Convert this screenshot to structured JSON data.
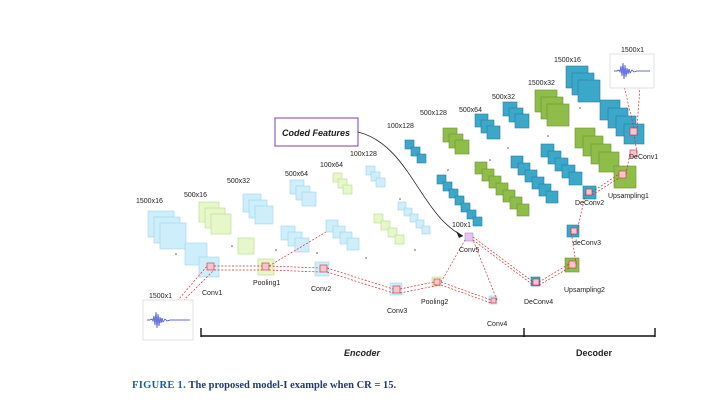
{
  "encoder": {
    "dims": [
      "1500x16",
      "500x16",
      "500x32",
      "500x64",
      "100x64",
      "100x128"
    ],
    "layers": [
      "Conv1",
      "Pooling1",
      "Conv2",
      "Conv3",
      "Pooling2",
      "Conv4",
      "Conv5"
    ],
    "input_dim": "1500x1",
    "bottleneck_dim": "100x1"
  },
  "decoder": {
    "dims": [
      "100x128",
      "500x128",
      "500x64",
      "500x32",
      "1500x32",
      "1500x16"
    ],
    "layers": [
      "DeConv4",
      "Upsampling2",
      "deConv3",
      "DeConv2",
      "Upsampling1",
      "DeConv1"
    ],
    "output_dim": "1500x1"
  },
  "coded_features": "Coded Features",
  "section_labels": {
    "encoder": "Encoder",
    "decoder": "Decoder"
  },
  "caption": {
    "lead": "FIGURE 1.",
    "text": "The proposed model-I example when CR = 15."
  },
  "colors": {
    "encoder_block": "#cdeefa",
    "encoder_block_alt": "#e6f7c9",
    "decoder_blue": "#3ba7c9",
    "decoder_green": "#8fbd4a",
    "dashed_line": "#d22c2c",
    "coded_box_border": "#7d3ea8",
    "signal": "#2b3bd6"
  }
}
